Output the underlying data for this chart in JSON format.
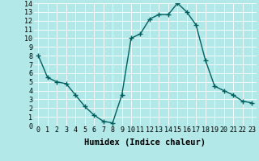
{
  "x": [
    0,
    1,
    2,
    3,
    4,
    5,
    6,
    7,
    8,
    9,
    10,
    11,
    12,
    13,
    14,
    15,
    16,
    17,
    18,
    19,
    20,
    21,
    22,
    23
  ],
  "y": [
    8,
    5.5,
    5,
    4.8,
    3.5,
    2.2,
    1.2,
    0.5,
    0.3,
    3.5,
    10,
    10.5,
    12.2,
    12.7,
    12.7,
    14,
    13,
    11.5,
    7.5,
    4.5,
    4,
    3.5,
    2.8,
    2.6
  ],
  "line_color": "#006060",
  "marker_color": "#006060",
  "bg_color": "#b2e8e8",
  "grid_color": "#ffffff",
  "xlabel": "Humidex (Indice chaleur)",
  "xlabel_fontsize": 7.5,
  "xlim": [
    -0.5,
    23.5
  ],
  "ylim": [
    0,
    14
  ],
  "yticks": [
    0,
    1,
    2,
    3,
    4,
    5,
    6,
    7,
    8,
    9,
    10,
    11,
    12,
    13,
    14
  ],
  "xticks": [
    0,
    1,
    2,
    3,
    4,
    5,
    6,
    7,
    8,
    9,
    10,
    11,
    12,
    13,
    14,
    15,
    16,
    17,
    18,
    19,
    20,
    21,
    22,
    23
  ],
  "tick_fontsize": 6,
  "marker_size": 2.5,
  "line_width": 1.0
}
